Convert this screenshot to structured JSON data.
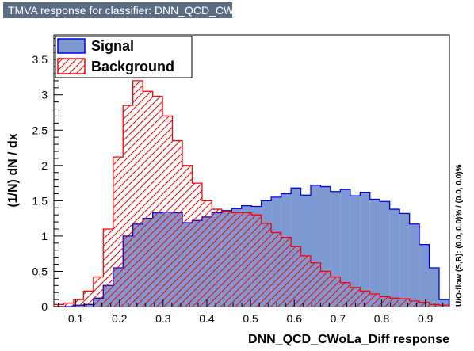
{
  "window": {
    "title": "TMVA response for classifier: DNN_QCD_CWoLa_Diff"
  },
  "colors": {
    "signal_fill": "#7d99d1",
    "signal_line": "#0000ee",
    "background_line": "#ff0000",
    "title_bg": "#5a6c82"
  },
  "chart_data": {
    "type": "bar",
    "xlabel": "DNN_QCD_CWoLa_Diff response",
    "ylabel": "(1/N)  dN / dx",
    "overflow_text": "U/O-flow (S,B): (0.0, 0.0)% / (0.0, 0.0)%",
    "xlim": [
      0.05,
      0.955
    ],
    "ylim": [
      0,
      3.85
    ],
    "xticks": [
      "0.1",
      "0.2",
      "0.3",
      "0.4",
      "0.5",
      "0.6",
      "0.7",
      "0.8",
      "0.9"
    ],
    "yticks": [
      "0",
      "0.5",
      "1",
      "1.5",
      "2",
      "2.5",
      "3",
      "3.5"
    ],
    "legend": {
      "placement": "top-left",
      "entries": [
        "Signal",
        "Background"
      ]
    },
    "bins": {
      "start": 0.05,
      "width": 0.0226,
      "count": 40
    },
    "series": [
      {
        "name": "Signal",
        "style": "filled",
        "values": [
          0,
          0,
          0.02,
          0.03,
          0.12,
          0.3,
          0.55,
          1.0,
          1.17,
          1.25,
          1.33,
          1.34,
          1.33,
          1.19,
          1.22,
          1.27,
          1.33,
          1.36,
          1.39,
          1.43,
          1.42,
          1.5,
          1.55,
          1.6,
          1.68,
          1.58,
          1.72,
          1.7,
          1.63,
          1.66,
          1.57,
          1.62,
          1.52,
          1.49,
          1.38,
          1.32,
          1.17,
          0.88,
          0.55,
          0.1
        ]
      },
      {
        "name": "Background",
        "style": "hatched",
        "values": [
          0.03,
          0.05,
          0.1,
          0.22,
          0.42,
          1.1,
          2.12,
          2.85,
          3.2,
          3.05,
          2.98,
          2.7,
          2.35,
          2.0,
          1.75,
          1.5,
          1.38,
          1.35,
          1.33,
          1.33,
          1.3,
          1.18,
          1.05,
          0.98,
          0.85,
          0.72,
          0.62,
          0.5,
          0.42,
          0.34,
          0.27,
          0.22,
          0.18,
          0.14,
          0.12,
          0.11,
          0.08,
          0.06,
          0.03,
          0.02
        ]
      }
    ]
  }
}
